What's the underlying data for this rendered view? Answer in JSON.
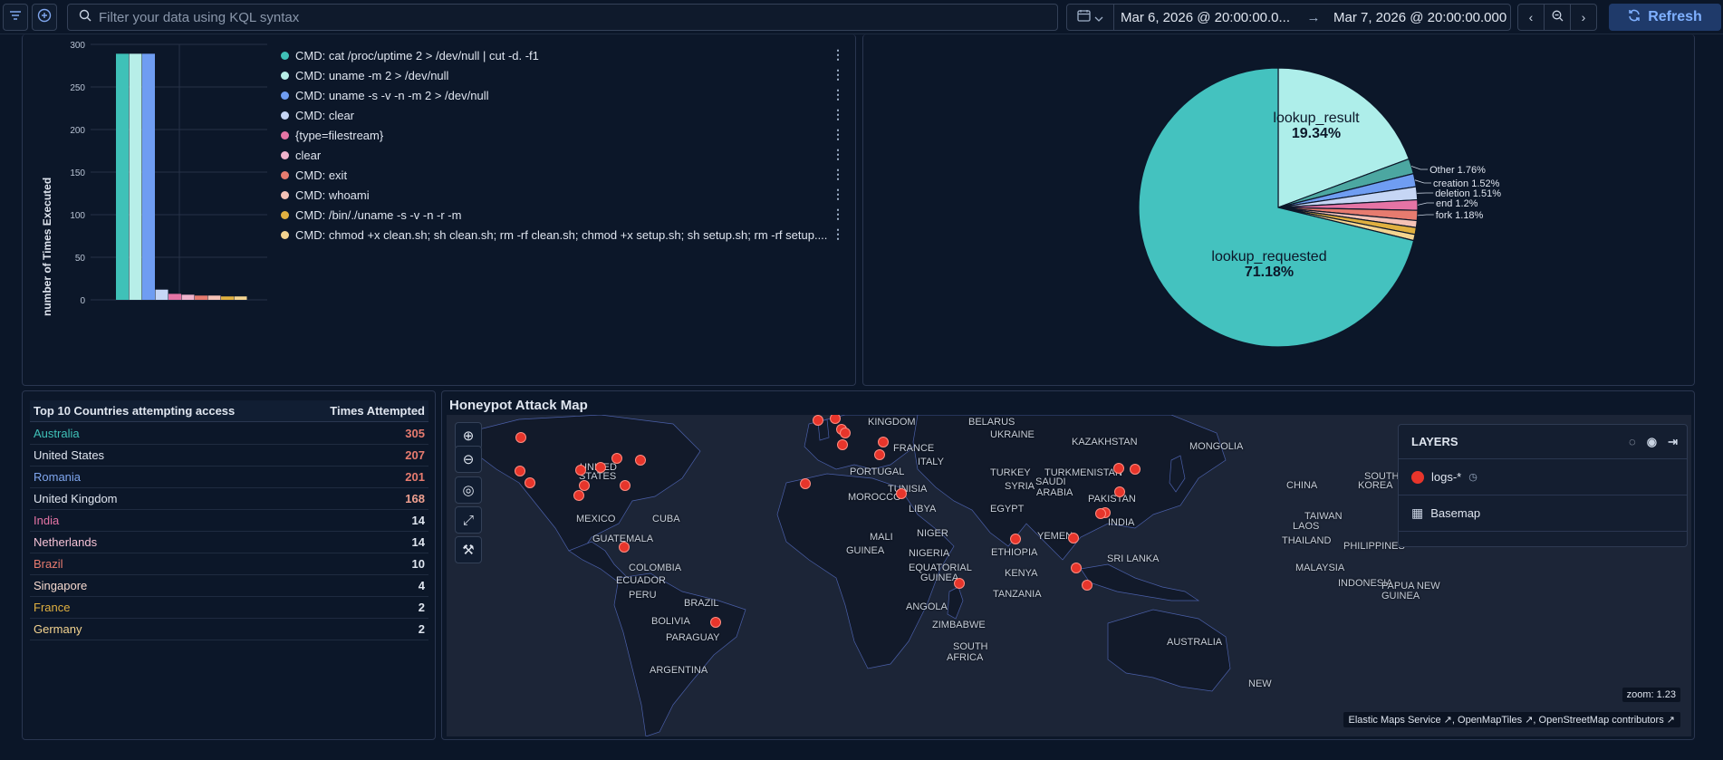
{
  "topbar": {
    "kql_placeholder": "Filter your data using KQL syntax",
    "date_start": "Mar 6, 2026 @ 20:00:00.0...",
    "date_arrow": "→",
    "date_end": "Mar 7, 2026 @ 20:00:00.000",
    "refresh_label": "Refresh"
  },
  "bar_panel": {
    "chart_data": {
      "type": "bar",
      "ylabel": "number of Times Executed",
      "ylim": [
        0,
        300
      ],
      "yticks": [
        0,
        50,
        100,
        150,
        200,
        250,
        300
      ],
      "grid": true,
      "legend_position": "right",
      "series": [
        {
          "name": "CMD: cat /proc/uptime 2 > /dev/null | cut -d. -f1",
          "value": 289,
          "color": "#3fc1b8"
        },
        {
          "name": "CMD: uname -m 2 > /dev/null",
          "value": 289,
          "color": "#b7eee8"
        },
        {
          "name": "CMD: uname -s -v -n -m 2 > /dev/null",
          "value": 289,
          "color": "#6f9df2"
        },
        {
          "name": "CMD: clear",
          "value": 12,
          "color": "#c6d6f5"
        },
        {
          "name": "{type=filestream}",
          "value": 7,
          "color": "#e574a5"
        },
        {
          "name": "clear",
          "value": 6,
          "color": "#f0b3cc"
        },
        {
          "name": "CMD: exit",
          "value": 5,
          "color": "#e77b6f"
        },
        {
          "name": "CMD: whoami",
          "value": 5,
          "color": "#f5c2b6"
        },
        {
          "name": "CMD: /bin/./uname -s -v -n -r -m",
          "value": 4,
          "color": "#e0b040"
        },
        {
          "name": "CMD: chmod +x clean.sh; sh clean.sh; rm -rf clean.sh; chmod +x setup.sh; sh setup.sh; rm -rf setup....",
          "value": 4,
          "color": "#f4d490"
        }
      ]
    }
  },
  "pie_panel": {
    "chart_data": {
      "type": "pie",
      "slices": [
        {
          "label": "lookup_requested",
          "percent_label": "71.18%",
          "value": 71.18,
          "color": "#44c2bf"
        },
        {
          "label": "lookup_result",
          "percent_label": "19.34%",
          "value": 19.34,
          "color": "#aeeeea"
        },
        {
          "label": "Other",
          "percent_label": "1.76%",
          "value": 1.76,
          "color": "#4ca7a1"
        },
        {
          "label": "creation",
          "percent_label": "1.52%",
          "value": 1.52,
          "color": "#6f9df2"
        },
        {
          "label": "deletion",
          "percent_label": "1.51%",
          "value": 1.51,
          "color": "#c6d6f5"
        },
        {
          "label": "end",
          "percent_label": "1.2%",
          "value": 1.2,
          "color": "#e574a5"
        },
        {
          "label": "fork",
          "percent_label": "1.18%",
          "value": 1.18,
          "color": "#e77b6f"
        },
        {
          "label": "",
          "percent_label": "",
          "value": 0.8,
          "color": "#f5c2b6"
        },
        {
          "label": "",
          "percent_label": "",
          "value": 0.8,
          "color": "#e0b040"
        },
        {
          "label": "",
          "percent_label": "",
          "value": 0.71,
          "color": "#f4d490"
        }
      ]
    }
  },
  "countries_table": {
    "header_country": "Top 10 Countries attempting access",
    "header_count": "Times Attempted",
    "rows": [
      {
        "country": "Australia",
        "count": "305",
        "name_color": "#3fc1b8",
        "count_color": "#e77b6f"
      },
      {
        "country": "United States",
        "count": "207",
        "name_color": "#dfe5ef",
        "count_color": "#e77b6f"
      },
      {
        "country": "Romania",
        "count": "201",
        "name_color": "#7fa6ee",
        "count_color": "#e77b6f"
      },
      {
        "country": "United Kingdom",
        "count": "168",
        "name_color": "#dfe5ef",
        "count_color": "#f0a090"
      },
      {
        "country": "India",
        "count": "14",
        "name_color": "#e574a5",
        "count_color": "#dfe5ef"
      },
      {
        "country": "Netherlands",
        "count": "14",
        "name_color": "#f5c2d6",
        "count_color": "#dfe5ef"
      },
      {
        "country": "Brazil",
        "count": "10",
        "name_color": "#e77b6f",
        "count_color": "#dfe5ef"
      },
      {
        "country": "Singapore",
        "count": "4",
        "name_color": "#f5d9cf",
        "count_color": "#dfe5ef"
      },
      {
        "country": "France",
        "count": "2",
        "name_color": "#e0b040",
        "count_color": "#dfe5ef"
      },
      {
        "country": "Germany",
        "count": "2",
        "name_color": "#f4d490",
        "count_color": "#dfe5ef"
      }
    ]
  },
  "map_panel": {
    "title": "Honeypot Attack Map",
    "layers_title": "LAYERS",
    "layer_logs": "logs-*",
    "layer_basemap": "Basemap",
    "zoom_text": "zoom: 1.23",
    "attribution": [
      "Elastic Maps Service",
      "OpenMapTiles",
      "OpenStreetMap contributors"
    ],
    "labels": [
      "KINGDOM",
      "BELARUS",
      "UKRAINE",
      "KAZAKHSTAN",
      "MONGOLIA",
      "FRANCE",
      "ITALY",
      "PORTUGAL",
      "UNITED",
      "STATES",
      "TURKEY",
      "TURKMENISTAN",
      "SOUTH",
      "KOREA",
      "CHINA",
      "MOROCCO",
      "TUNISIA",
      "SYRIA",
      "PAKISTAN",
      "MEXICO",
      "CUBA",
      "LIBYA",
      "EGYPT",
      "SAUDI",
      "ARABIA",
      "INDIA",
      "LAOS",
      "TAIWAN",
      "GUATEMALA",
      "MALI",
      "NIGER",
      "THAILAND",
      "PHILIPPINES",
      "GUINEA",
      "NIGERIA",
      "ETHIOPIA",
      "YEMEN",
      "SRI LANKA",
      "COLOMBIA",
      "EQUATORIAL",
      "GUINEA",
      "KENYA",
      "MALAYSIA",
      "ECUADOR",
      "INDONESIA",
      "PAPUA NEW",
      "GUINEA",
      "PERU",
      "BRAZIL",
      "TANZANIA",
      "ANGOLA",
      "BOLIVIA",
      "ZIMBABWE",
      "PARAGUAY",
      "SOUTH",
      "AFRICA",
      "AUSTRALIA",
      "ARGENTINA",
      "NEW",
      "TE",
      "GE"
    ]
  }
}
